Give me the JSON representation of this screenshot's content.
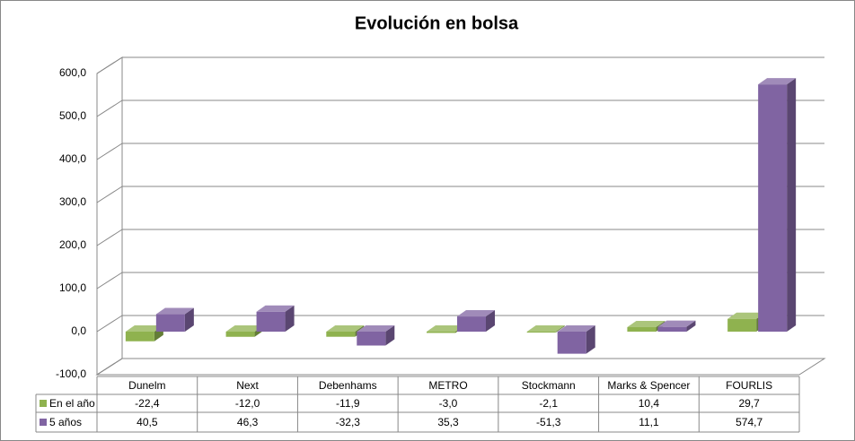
{
  "chart_data": {
    "type": "bar3d",
    "title": "Evolución en bolsa",
    "categories": [
      "Dunelm",
      "Next",
      "Debenhams",
      "METRO",
      "Stockmann",
      "Marks & Spencer",
      "FOURLIS"
    ],
    "series": [
      {
        "name": "En el año",
        "color": "#8fb24f",
        "values": [
          -22.4,
          -12.0,
          -11.9,
          -3.0,
          -2.1,
          10.4,
          29.7
        ],
        "value_labels": [
          "-22,4",
          "-12,0",
          "-11,9",
          "-3,0",
          "-2,1",
          "10,4",
          "29,7"
        ]
      },
      {
        "name": "5 años",
        "color": "#8064a2",
        "values": [
          40.5,
          46.3,
          -32.3,
          35.3,
          -51.3,
          11.1,
          574.7
        ],
        "value_labels": [
          "40,5",
          "46,3",
          "-32,3",
          "35,3",
          "-51,3",
          "11,1",
          "574,7"
        ]
      }
    ],
    "ylim": [
      -100,
      600
    ],
    "yticks": [
      {
        "value": -100,
        "label": "-100,0"
      },
      {
        "value": 0,
        "label": "0,0"
      },
      {
        "value": 100,
        "label": "100,0"
      },
      {
        "value": 200,
        "label": "200,0"
      },
      {
        "value": 300,
        "label": "300,0"
      },
      {
        "value": 400,
        "label": "400,0"
      },
      {
        "value": 500,
        "label": "500,0"
      },
      {
        "value": 600,
        "label": "600,0"
      }
    ],
    "grid": true
  }
}
